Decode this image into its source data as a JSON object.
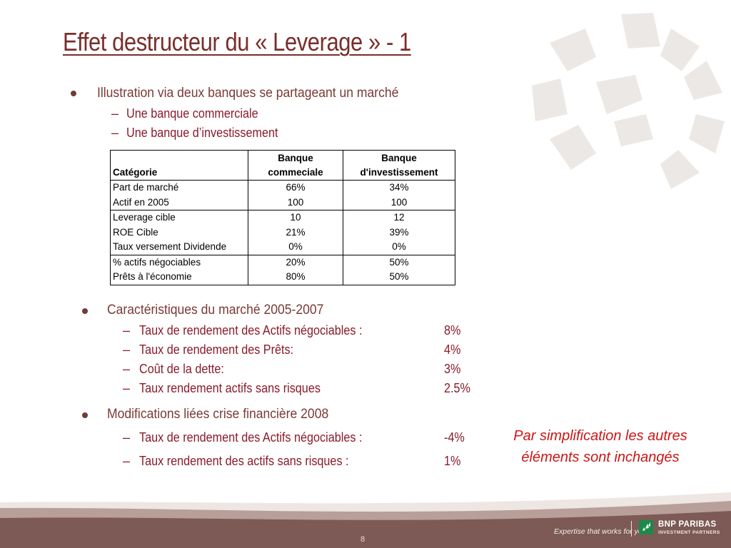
{
  "slide": {
    "title": "Effet destructeur du « Leverage » - 1",
    "page_number": "8"
  },
  "intro": {
    "bullet": "Illustration via deux banques se partageant un marché",
    "sub": [
      "Une banque commerciale",
      "Une banque d’investissement"
    ]
  },
  "table": {
    "header": {
      "col1": "Catégorie",
      "col2_line1": "Banque",
      "col2_line2": "commeciale",
      "col3_line1": "Banque",
      "col3_line2": "d'investissement"
    },
    "rows": [
      {
        "label": "Part de marché",
        "commercial": "66%",
        "investment": "34%"
      },
      {
        "label": "Actif en 2005",
        "commercial": "100",
        "investment": "100"
      },
      {
        "label": "Leverage cible",
        "commercial": "10",
        "investment": "12"
      },
      {
        "label": "ROE Cible",
        "commercial": "21%",
        "investment": "39%"
      },
      {
        "label": "Taux versement Dividende",
        "commercial": "0%",
        "investment": "0%"
      },
      {
        "label": "% actifs négociables",
        "commercial": "20%",
        "investment": "50%"
      },
      {
        "label": "Prêts à l'économie",
        "commercial": "80%",
        "investment": "50%"
      }
    ]
  },
  "market": {
    "bullet": "Caractéristiques du marché 2005-2007",
    "items": [
      {
        "label": "Taux de rendement des Actifs négociables :",
        "value": "8%"
      },
      {
        "label": "Taux de rendement des Prêts:",
        "value": "4%"
      },
      {
        "label": "Coût de la dette:",
        "value": "3%"
      },
      {
        "label": "Taux rendement actifs sans risques",
        "value": "2.5%"
      }
    ]
  },
  "crisis": {
    "bullet": "Modifications liées crise financière 2008",
    "items": [
      {
        "label": "Taux de rendement des Actifs négociables :",
        "value": "-4%"
      },
      {
        "label": "Taux rendement des actifs sans risques :",
        "value": "1%"
      }
    ]
  },
  "note": {
    "line1": "Par simplification les autres",
    "line2": "éléments sont inchangés"
  },
  "footer": {
    "tagline": "Expertise that works for you",
    "brand": "BNP PARIBAS",
    "brand_sub": "INVESTMENT PARTNERS"
  },
  "colors": {
    "title": "#7a2e2a",
    "sub_text": "#8a1b2a",
    "note": "#cc1616",
    "footer_band": "#7d5a55",
    "brand_green": "#1a8a4a"
  }
}
